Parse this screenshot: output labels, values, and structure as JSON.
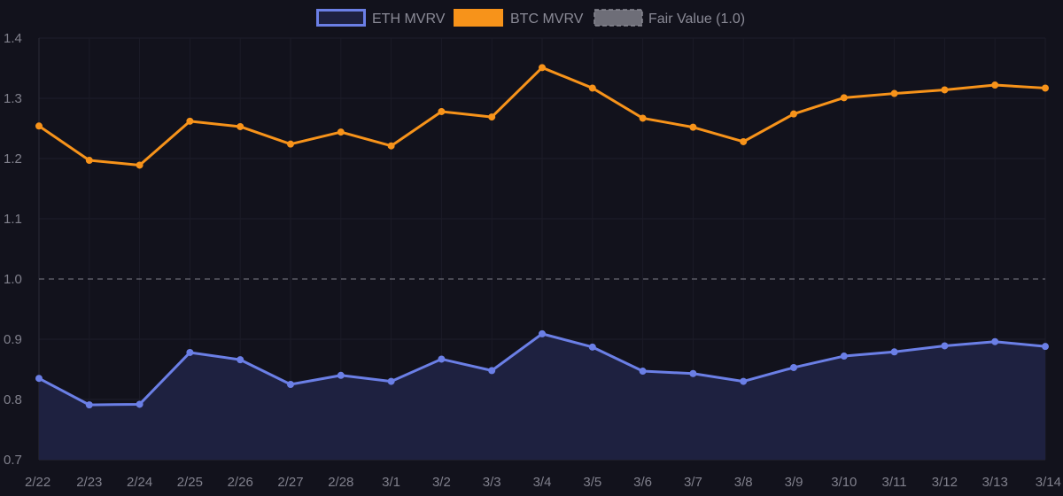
{
  "chart_data": {
    "type": "line",
    "categories": [
      "2/22",
      "2/23",
      "2/24",
      "2/25",
      "2/26",
      "2/27",
      "2/28",
      "3/1",
      "3/2",
      "3/3",
      "3/4",
      "3/5",
      "3/6",
      "3/7",
      "3/8",
      "3/9",
      "3/10",
      "3/11",
      "3/12",
      "3/13",
      "3/14"
    ],
    "series": [
      {
        "name": "ETH MVRV",
        "color": "#6b7fe6",
        "fill": "#1e2140",
        "values": [
          0.835,
          0.791,
          0.792,
          0.878,
          0.866,
          0.825,
          0.84,
          0.83,
          0.867,
          0.848,
          0.909,
          0.887,
          0.847,
          0.843,
          0.83,
          0.853,
          0.872,
          0.879,
          0.889,
          0.896,
          0.888
        ]
      },
      {
        "name": "BTC MVRV",
        "color": "#f7931a",
        "values": [
          1.254,
          1.197,
          1.189,
          1.262,
          1.253,
          1.224,
          1.244,
          1.221,
          1.278,
          1.269,
          1.351,
          1.317,
          1.267,
          1.252,
          1.228,
          1.274,
          1.301,
          1.308,
          1.314,
          1.322,
          1.317
        ]
      }
    ],
    "reference_line": {
      "name": "Fair Value (1.0)",
      "value": 1.0,
      "color": "#6a6a74"
    },
    "yticks": [
      "0.7",
      "0.8",
      "0.9",
      "1.0",
      "1.1",
      "1.2",
      "1.3",
      "1.4"
    ],
    "ylim": [
      0.7,
      1.4
    ],
    "grid": true,
    "legend_position": "top-center"
  }
}
